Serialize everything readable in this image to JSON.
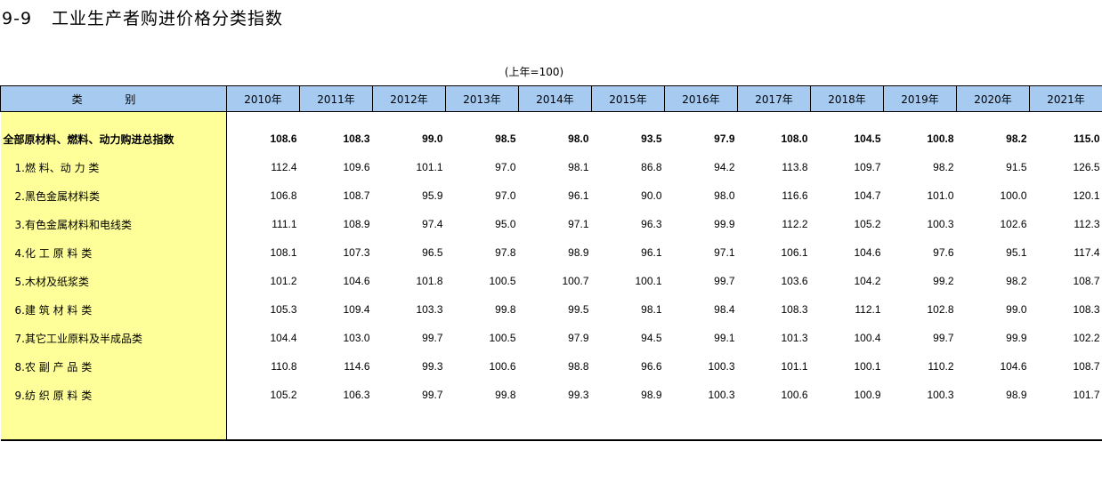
{
  "title": {
    "number": "9-9",
    "text": "工业生产者购进价格分类指数"
  },
  "unit": "(上年=100)",
  "header": {
    "category": "类 别",
    "years": [
      "2010年",
      "2011年",
      "2012年",
      "2013年",
      "2014年",
      "2015年",
      "2016年",
      "2017年",
      "2018年",
      "2019年",
      "2020年",
      "2021年"
    ]
  },
  "rows": [
    {
      "label": "全部原材料、燃料、动力购进总指数",
      "values": [
        "108.6",
        "108.3",
        "99.0",
        "98.5",
        "98.0",
        "93.5",
        "97.9",
        "108.0",
        "104.5",
        "100.8",
        "98.2",
        "115.0"
      ]
    },
    {
      "label": "1.燃 料、动 力 类",
      "values": [
        "112.4",
        "109.6",
        "101.1",
        "97.0",
        "98.1",
        "86.8",
        "94.2",
        "113.8",
        "109.7",
        "98.2",
        "91.5",
        "126.5"
      ]
    },
    {
      "label": "2.黑色金属材料类",
      "values": [
        "106.8",
        "108.7",
        "95.9",
        "97.0",
        "96.1",
        "90.0",
        "98.0",
        "116.6",
        "104.7",
        "101.0",
        "100.0",
        "120.1"
      ]
    },
    {
      "label": "3.有色金属材料和电线类",
      "values": [
        "111.1",
        "108.9",
        "97.4",
        "95.0",
        "97.1",
        "96.3",
        "99.9",
        "112.2",
        "105.2",
        "100.3",
        "102.6",
        "112.3"
      ]
    },
    {
      "label": "4.化 工 原 料 类",
      "values": [
        "108.1",
        "107.3",
        "96.5",
        "97.8",
        "98.9",
        "96.1",
        "97.1",
        "106.1",
        "104.6",
        "97.6",
        "95.1",
        "117.4"
      ]
    },
    {
      "label": "5.木材及纸浆类",
      "values": [
        "101.2",
        "104.6",
        "101.8",
        "100.5",
        "100.7",
        "100.1",
        "99.7",
        "103.6",
        "104.2",
        "99.2",
        "98.2",
        "108.7"
      ]
    },
    {
      "label": "6.建 筑 材 料 类",
      "values": [
        "105.3",
        "109.4",
        "103.3",
        "99.8",
        "99.5",
        "98.1",
        "98.4",
        "108.3",
        "112.1",
        "102.8",
        "99.0",
        "108.3"
      ]
    },
    {
      "label": "7.其它工业原料及半成品类",
      "values": [
        "104.4",
        "103.0",
        "99.7",
        "100.5",
        "97.9",
        "94.5",
        "99.1",
        "101.3",
        "100.4",
        "99.7",
        "99.9",
        "102.2"
      ]
    },
    {
      "label": "8.农 副 产 品 类",
      "values": [
        "110.8",
        "114.6",
        "99.3",
        "100.6",
        "98.8",
        "96.6",
        "100.3",
        "101.1",
        "100.1",
        "110.2",
        "104.6",
        "108.7"
      ]
    },
    {
      "label": "9.纺 织 原 料 类",
      "values": [
        "105.2",
        "106.3",
        "99.7",
        "99.8",
        "99.3",
        "98.9",
        "100.3",
        "100.6",
        "100.9",
        "100.3",
        "98.9",
        "101.7"
      ]
    }
  ]
}
